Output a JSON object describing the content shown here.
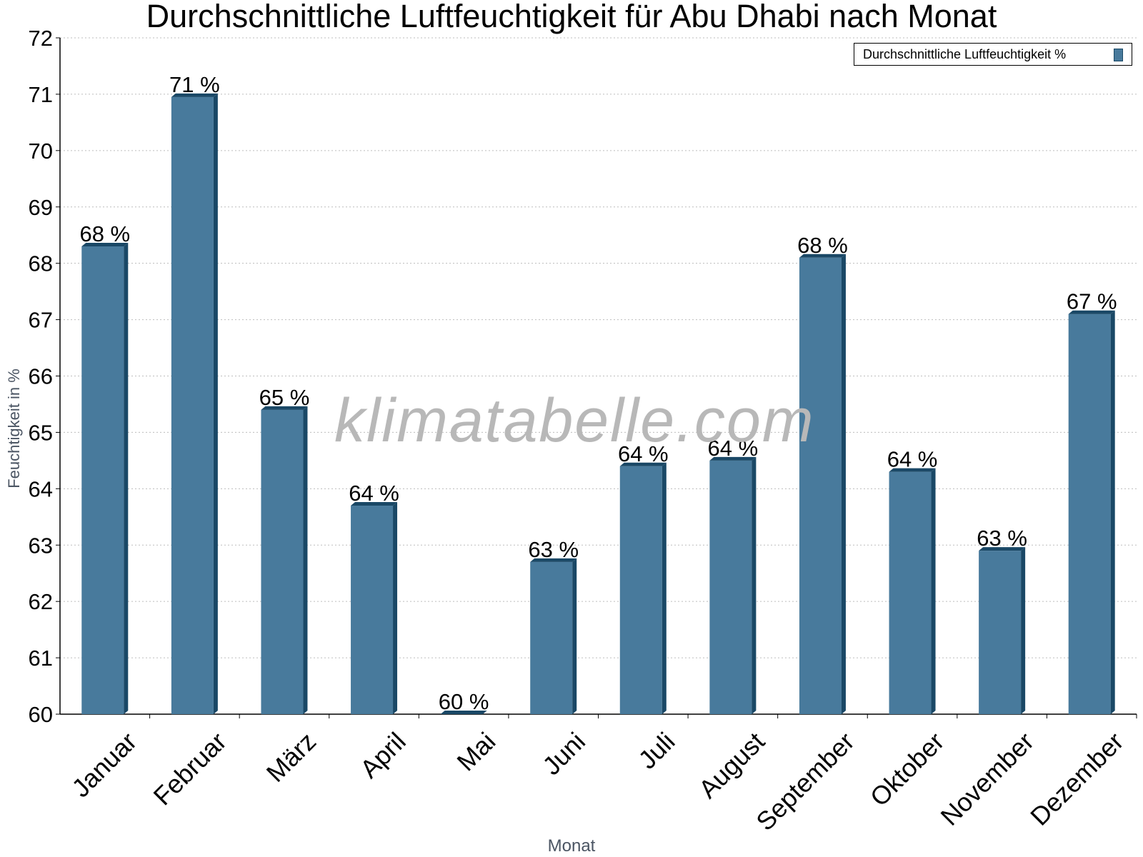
{
  "chart_data": {
    "type": "bar",
    "title": "Durchschnittliche Luftfeuchtigkeit für Abu Dhabi nach Monat",
    "xlabel": "Monat",
    "ylabel": "Feuchtigkeit in %",
    "categories": [
      "Januar",
      "Februar",
      "März",
      "April",
      "Mai",
      "Juni",
      "Juli",
      "August",
      "September",
      "Oktober",
      "November",
      "Dezember"
    ],
    "series": [
      {
        "name": "Durchschnittliche Luftfeuchtigkeit %",
        "values": [
          68.3,
          70.95,
          65.4,
          63.7,
          60.0,
          62.7,
          64.4,
          64.5,
          68.1,
          64.3,
          62.9,
          67.1
        ],
        "labels": [
          "68 %",
          "71 %",
          "65 %",
          "64 %",
          "60 %",
          "63 %",
          "64 %",
          "64 %",
          "68 %",
          "64 %",
          "63 %",
          "67 %"
        ]
      }
    ],
    "ylim": [
      60,
      72
    ],
    "yticks": [
      60,
      61,
      62,
      63,
      64,
      65,
      66,
      67,
      68,
      69,
      70,
      71,
      72
    ],
    "grid": true,
    "legend_position": "top-right",
    "colors": {
      "bar": "#487a9c",
      "bar_dark": "#1a4866"
    }
  },
  "watermark": "klimatabelle.com"
}
